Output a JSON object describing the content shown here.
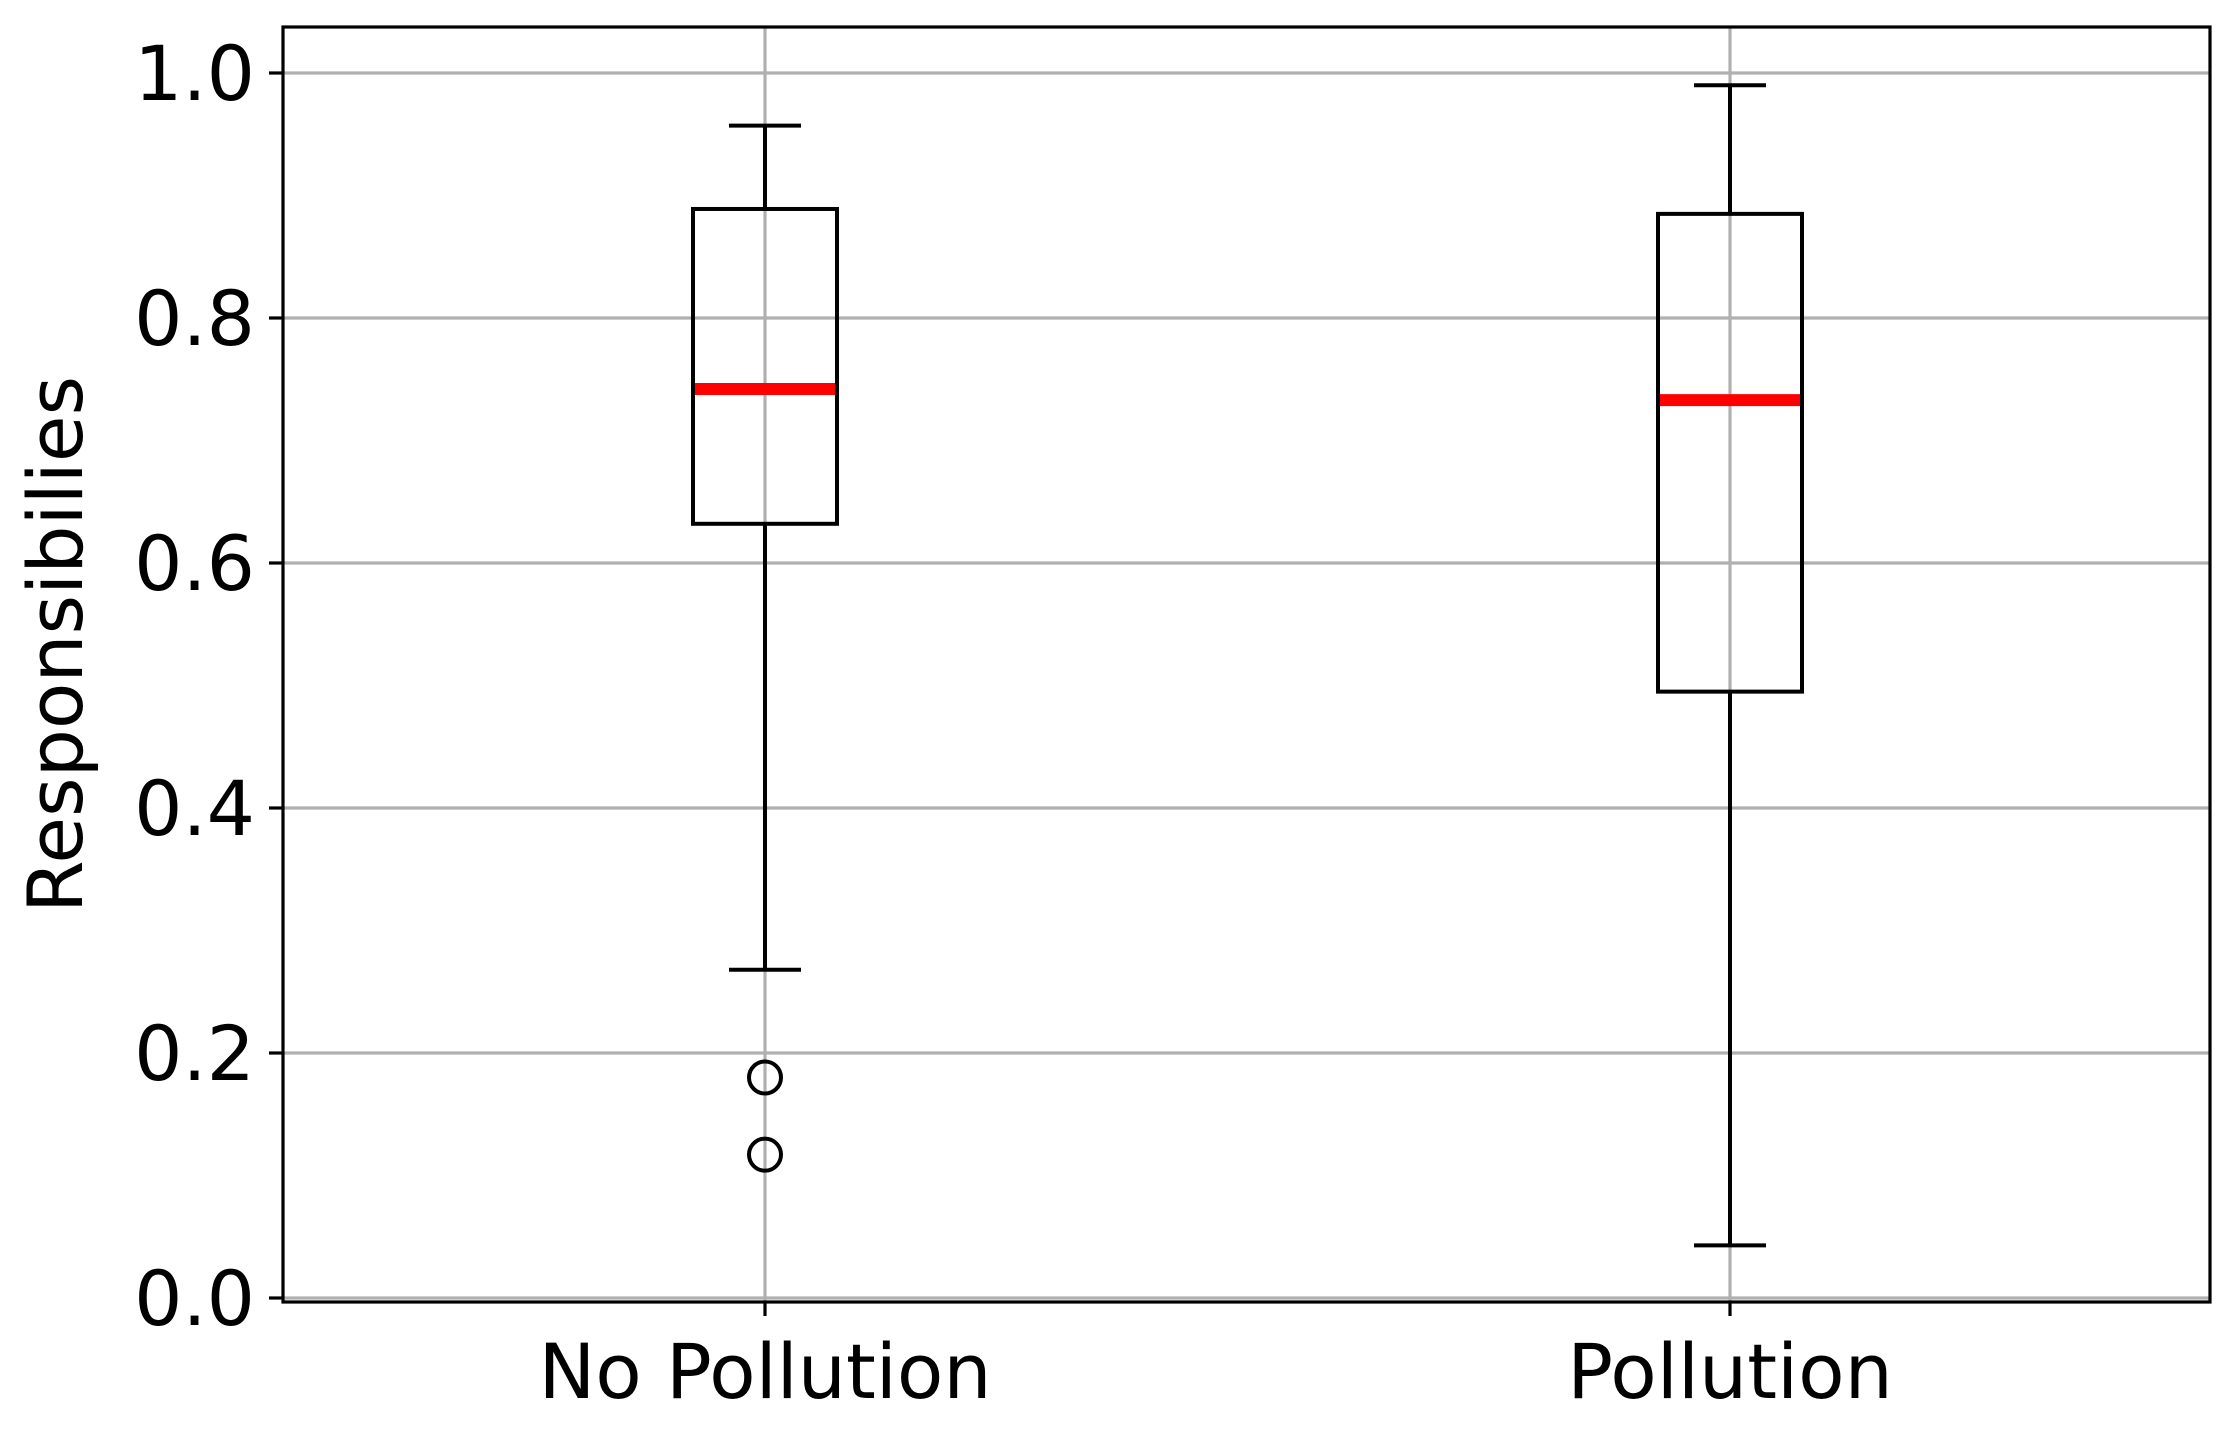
{
  "chart_data": {
    "type": "box",
    "ylabel": "Responsibilies",
    "xlabel": "",
    "title": "",
    "ylim": [
      0.0,
      1.0
    ],
    "yticks": [
      "0.0",
      "0.2",
      "0.4",
      "0.6",
      "0.8",
      "1.0"
    ],
    "grid": true,
    "median_color": "#ff0000",
    "box_color": "#000000",
    "grid_color": "#b0b0b0",
    "categories": [
      "No Pollution",
      "Pollution"
    ],
    "boxes": [
      {
        "name": "No Pollution",
        "whisker_low": 0.268,
        "q1": 0.632,
        "median": 0.742,
        "q3": 0.889,
        "whisker_high": 0.957,
        "outliers": [
          0.18,
          0.117
        ]
      },
      {
        "name": "Pollution",
        "whisker_low": 0.043,
        "q1": 0.495,
        "median": 0.733,
        "q3": 0.885,
        "whisker_high": 0.99,
        "outliers": []
      }
    ]
  }
}
